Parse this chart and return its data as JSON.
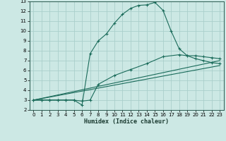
{
  "xlabel": "Humidex (Indice chaleur)",
  "bg_color": "#cce8e4",
  "grid_color": "#aacfcb",
  "line_color": "#1a6b5a",
  "xlim": [
    -0.5,
    23.5
  ],
  "ylim": [
    2,
    13
  ],
  "xticks": [
    0,
    1,
    2,
    3,
    4,
    5,
    6,
    7,
    8,
    9,
    10,
    11,
    12,
    13,
    14,
    15,
    16,
    17,
    18,
    19,
    20,
    21,
    22,
    23
  ],
  "yticks": [
    2,
    3,
    4,
    5,
    6,
    7,
    8,
    9,
    10,
    11,
    12,
    13
  ],
  "line1_x": [
    0,
    1,
    2,
    3,
    4,
    5,
    6,
    7,
    8,
    9,
    10,
    11,
    12,
    13,
    14,
    15,
    16,
    17,
    18,
    19,
    20,
    21,
    22,
    23
  ],
  "line1_y": [
    3.0,
    3.0,
    3.0,
    3.0,
    3.0,
    3.0,
    2.5,
    7.7,
    9.0,
    9.7,
    10.8,
    11.7,
    12.3,
    12.6,
    12.65,
    12.9,
    12.1,
    10.0,
    8.2,
    7.5,
    7.2,
    7.0,
    6.8,
    6.7
  ],
  "line2_x": [
    0,
    1,
    2,
    3,
    4,
    5,
    6,
    7,
    8,
    10,
    12,
    14,
    16,
    18,
    19,
    20,
    21,
    22,
    23
  ],
  "line2_y": [
    3.0,
    3.0,
    3.0,
    3.0,
    3.0,
    3.0,
    2.9,
    3.0,
    4.6,
    5.5,
    6.1,
    6.7,
    7.4,
    7.6,
    7.5,
    7.5,
    7.4,
    7.3,
    7.2
  ],
  "line3_x": [
    0,
    23
  ],
  "line3_y": [
    3.0,
    7.0
  ],
  "line4_x": [
    0,
    23
  ],
  "line4_y": [
    3.0,
    6.5
  ]
}
